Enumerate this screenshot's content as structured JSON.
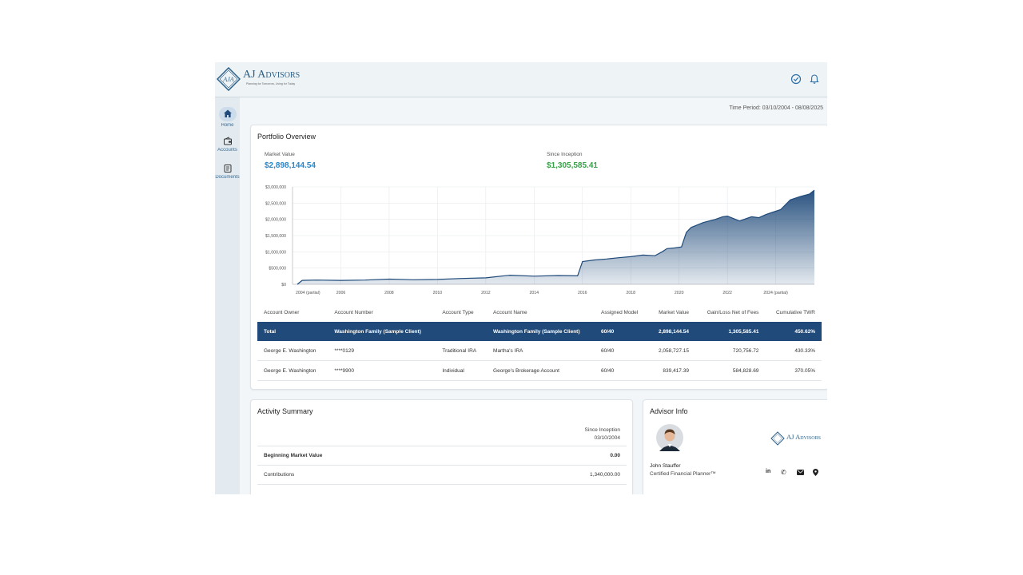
{
  "header": {
    "logo_monogram": "AJA",
    "brand_name": "AJ Advisors",
    "tagline": "Planning for Tomorrow, Living for Today",
    "icons": [
      "check-circle-icon",
      "bell-icon"
    ]
  },
  "sidebar": {
    "items": [
      {
        "label": "Home",
        "icon": "home-icon",
        "active": true
      },
      {
        "label": "Accounts",
        "icon": "wallet-icon"
      },
      {
        "label": "Documents",
        "icon": "documents-icon"
      }
    ]
  },
  "time_period": "Time Period: 03/10/2004 - 08/08/2025",
  "portfolio": {
    "title": "Portfolio Overview",
    "market_value_label": "Market Value",
    "market_value": "$2,898,144.54",
    "since_inception_label": "Since Inception",
    "since_inception": "$1,305,585.41",
    "colors": {
      "market_value": "#2a86c9",
      "since_inception": "#3aa14a",
      "area": "#1f4a7a"
    }
  },
  "chart_data": {
    "type": "area",
    "title": "",
    "xlabel": "",
    "ylabel": "",
    "ylim": [
      0,
      3000000
    ],
    "yticks": [
      "$0",
      "$500,000",
      "$1,000,000",
      "$1,500,000",
      "$2,000,000",
      "$2,500,000",
      "$3,000,000"
    ],
    "xticks": [
      "2004 (partial)",
      "2006",
      "2008",
      "2010",
      "2012",
      "2014",
      "2016",
      "2018",
      "2020",
      "2022",
      "2024 (partial)"
    ],
    "grid": true,
    "x": [
      2004.2,
      2004.4,
      2005.0,
      2006.0,
      2007.0,
      2008.0,
      2009.0,
      2010.0,
      2011.0,
      2012.0,
      2013.0,
      2014.0,
      2015.0,
      2015.8,
      2016.0,
      2016.5,
      2017.0,
      2017.5,
      2018.0,
      2018.5,
      2019.0,
      2019.3,
      2019.5,
      2019.8,
      2020.1,
      2020.3,
      2020.5,
      2021.0,
      2021.5,
      2021.8,
      2022.0,
      2022.5,
      2023.0,
      2023.3,
      2023.6,
      2023.8,
      2024.2,
      2024.6,
      2025.0,
      2025.4,
      2025.6
    ],
    "values": [
      0,
      120000,
      130000,
      120000,
      130000,
      160000,
      140000,
      150000,
      180000,
      200000,
      280000,
      250000,
      270000,
      260000,
      700000,
      750000,
      780000,
      820000,
      850000,
      900000,
      880000,
      1000000,
      1100000,
      1120000,
      1150000,
      1600000,
      1750000,
      1900000,
      2000000,
      2080000,
      2100000,
      1950000,
      2080000,
      2050000,
      2150000,
      2200000,
      2300000,
      2600000,
      2700000,
      2780000,
      2900000
    ]
  },
  "accounts_table": {
    "headers": [
      "Account Owner",
      "Account Number",
      "Account Type",
      "Account Name",
      "Assigned Model",
      "Market Value",
      "Gain/Loss Net of Fees",
      "Cumulative TWR"
    ],
    "total": [
      "Total",
      "Washington Family (Sample Client)",
      "",
      "Washington Family (Sample Client)",
      "60/40",
      "2,898,144.54",
      "1,305,585.41",
      "450.62%"
    ],
    "rows": [
      [
        "George E. Washington",
        "****0129",
        "Traditional IRA",
        "Martha's IRA",
        "60/40",
        "2,058,727.15",
        "720,756.72",
        "430.33%"
      ],
      [
        "George E. Washington",
        "****9900",
        "Individual",
        "George's Brokerage Account",
        "60/40",
        "839,417.39",
        "584,828.69",
        "370.05%"
      ]
    ]
  },
  "activity": {
    "title": "Activity Summary",
    "column_header_line1": "Since Inception",
    "column_header_line2": "03/10/2004",
    "rows": [
      {
        "label": "Beginning Market Value",
        "value": "0.00",
        "bold": true
      },
      {
        "label": "Contributions",
        "value": "1,340,000.00",
        "bold": false
      }
    ]
  },
  "advisor": {
    "title": "Advisor Info",
    "name": "John Stauffer",
    "role": "Certified Financial Planner™",
    "brand_name": "AJ Advisors",
    "contact_icons": [
      "linkedin-icon",
      "phone-icon",
      "email-icon",
      "location-icon"
    ]
  }
}
